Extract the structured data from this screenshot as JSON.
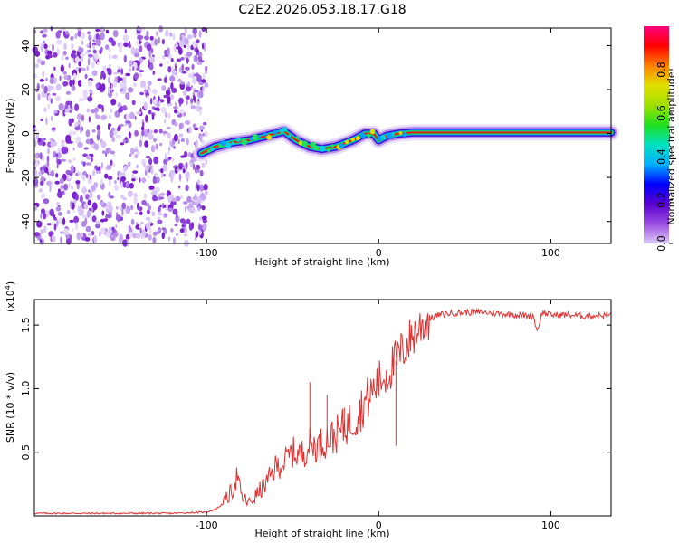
{
  "title": "C2E2.2026.053.18.17.G18",
  "chart_data": [
    {
      "type": "heatmap",
      "name": "spectrogram",
      "xlabel": "Height of straight line (km)",
      "ylabel": "Frequency (Hz)",
      "xlim": [
        -200,
        135
      ],
      "ylim": [
        -50,
        48
      ],
      "x_ticks": [
        -100,
        0,
        100
      ],
      "x_tick_labels": [
        "-100",
        "0",
        "100"
      ],
      "y_ticks": [
        -40,
        -20,
        0,
        20,
        40
      ],
      "y_tick_labels": [
        "-40",
        "-20",
        "0",
        "20",
        "40"
      ],
      "noise_region_x": [
        -200,
        -100
      ],
      "ridge_x": [
        -103,
        -95,
        -85,
        -75,
        -65,
        -55,
        -48,
        -40,
        -33,
        -25,
        -15,
        -8,
        -3,
        0,
        5,
        12,
        20,
        40,
        60,
        80,
        100,
        120,
        135
      ],
      "ridge_y": [
        -9,
        -6,
        -4,
        -3,
        -1,
        1,
        -3,
        -6,
        -7,
        -6,
        -3,
        0,
        0,
        -3,
        -1,
        0,
        0.5,
        0.5,
        0.5,
        0.5,
        0.5,
        0.5,
        0.5
      ]
    },
    {
      "type": "colorbar",
      "name": "amplitude-colorbar",
      "label": "Normalized spectral amplitude",
      "range": [
        0,
        1
      ],
      "ticks": [
        0.0,
        0.2,
        0.4,
        0.6,
        0.8
      ],
      "tick_labels": [
        "0.0",
        "0.2",
        "0.4",
        "0.6",
        "0.8"
      ],
      "colors": [
        "#dcc8f8",
        "#9b4de0",
        "#5a00d0",
        "#0000ff",
        "#00b0ff",
        "#00e0c0",
        "#20e020",
        "#a0e000",
        "#e0e000",
        "#ff8000",
        "#ff0000",
        "#ff0080"
      ]
    },
    {
      "type": "line",
      "name": "snr",
      "xlabel": "Height of straight line (km)",
      "ylabel": "SNR (10 * v/v)",
      "y_multiplier": "(x10",
      "y_multiplier_exp": "4",
      "xlim": [
        -200,
        135
      ],
      "ylim": [
        0,
        1.7
      ],
      "x_ticks": [
        -100,
        0,
        100
      ],
      "x_tick_labels": [
        "-100",
        "0",
        "100"
      ],
      "y_ticks": [
        0.5,
        1.0,
        1.5
      ],
      "y_tick_labels": [
        "0.5",
        "1.0",
        "1.5"
      ],
      "color": "#e03030",
      "x": [
        -200,
        -150,
        -120,
        -100,
        -95,
        -90,
        -85,
        -82,
        -80,
        -75,
        -70,
        -65,
        -60,
        -55,
        -50,
        -45,
        -40,
        -35,
        -30,
        -25,
        -20,
        -15,
        -10,
        -5,
        0,
        5,
        10,
        15,
        20,
        25,
        30,
        35,
        40,
        50,
        60,
        70,
        80,
        90,
        92,
        95,
        100,
        110,
        120,
        135
      ],
      "y": [
        0.02,
        0.02,
        0.02,
        0.03,
        0.05,
        0.1,
        0.2,
        0.33,
        0.15,
        0.1,
        0.18,
        0.26,
        0.38,
        0.42,
        0.5,
        0.48,
        0.56,
        0.55,
        0.6,
        0.63,
        0.7,
        0.75,
        0.85,
        0.95,
        1.05,
        1.12,
        1.22,
        1.32,
        1.42,
        1.5,
        1.55,
        1.58,
        1.59,
        1.6,
        1.6,
        1.59,
        1.58,
        1.57,
        1.45,
        1.6,
        1.58,
        1.58,
        1.57,
        1.58
      ]
    }
  ]
}
